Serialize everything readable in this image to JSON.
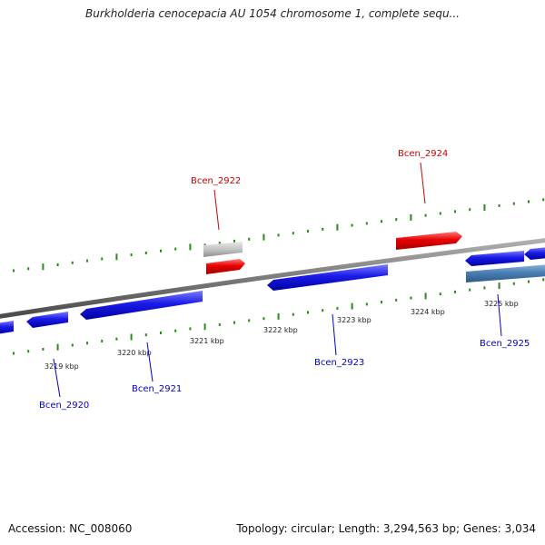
{
  "title": "Burkholderia cenocepacia AU 1054 chromosome 1, complete sequ...",
  "footer": {
    "accession": "Accession: NC_008060",
    "summary": "Topology: circular; Length: 3,294,563 bp; Genes: 3,034"
  },
  "colors": {
    "forward_gene": "#e00000",
    "reverse_gene": "#1010e8",
    "selected_gene": "#4a7fb5",
    "pseudo_gene": "#bcbcbc",
    "backbone": "#7a7a7a",
    "tick": "#2a8a1a",
    "label_forward": "#cc0000",
    "label_reverse": "#0000cc",
    "tick_label": "#222222"
  },
  "ruler": {
    "unit": "kbp",
    "labels": [
      "3219 kbp",
      "3220 kbp",
      "3221 kbp",
      "3222 kbp",
      "3223 kbp",
      "3224 kbp",
      "3225 kbp"
    ]
  },
  "gene_labels": [
    {
      "name": "Bcen_2920",
      "strand": "reverse"
    },
    {
      "name": "Bcen_2921",
      "strand": "reverse"
    },
    {
      "name": "Bcen_2922",
      "strand": "forward"
    },
    {
      "name": "Bcen_2923",
      "strand": "reverse"
    },
    {
      "name": "Bcen_2924",
      "strand": "forward"
    },
    {
      "name": "Bcen_2925",
      "strand": "reverse"
    }
  ]
}
